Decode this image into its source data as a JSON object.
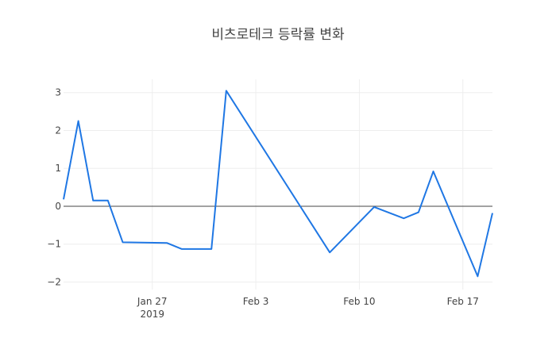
{
  "chart_data": {
    "type": "line",
    "title": "비츠로테크 등락률 변화",
    "xlabel": "",
    "ylabel": "",
    "x_type": "date",
    "xlim": [
      "2019-01-21",
      "2019-02-19"
    ],
    "ylim": [
      -2.2,
      3.35
    ],
    "grid": true,
    "zero_line": true,
    "x_ticks": [
      {
        "date": "2019-01-27",
        "label": "Jan 27",
        "sublabel": "2019"
      },
      {
        "date": "2019-02-03",
        "label": "Feb 3",
        "sublabel": ""
      },
      {
        "date": "2019-02-10",
        "label": "Feb 10",
        "sublabel": ""
      },
      {
        "date": "2019-02-17",
        "label": "Feb 17",
        "sublabel": ""
      }
    ],
    "y_ticks": [
      {
        "value": 3,
        "label": "3"
      },
      {
        "value": 2,
        "label": "2"
      },
      {
        "value": 1,
        "label": "1"
      },
      {
        "value": 0,
        "label": "0"
      },
      {
        "value": -1,
        "label": "−1"
      },
      {
        "value": -2,
        "label": "−2"
      }
    ],
    "series": [
      {
        "color": "#1f77e4",
        "x": [
          "2019-01-21",
          "2019-01-22",
          "2019-01-23",
          "2019-01-24",
          "2019-01-25",
          "2019-01-28",
          "2019-01-29",
          "2019-01-31",
          "2019-02-01",
          "2019-02-08",
          "2019-02-11",
          "2019-02-13",
          "2019-02-14",
          "2019-02-15",
          "2019-02-18",
          "2019-02-19"
        ],
        "y": [
          0.18,
          2.25,
          0.15,
          0.15,
          -0.95,
          -0.97,
          -1.13,
          -1.13,
          3.05,
          -1.22,
          -0.02,
          -0.32,
          -0.16,
          0.92,
          -1.85,
          -0.18
        ]
      }
    ]
  }
}
